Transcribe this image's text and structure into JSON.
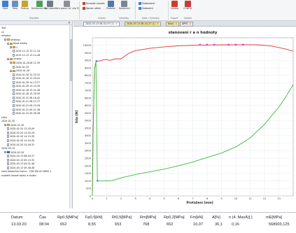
{
  "ribbon": {
    "buttons": [
      {
        "label": "Start",
        "color": "#3d7fd6"
      },
      {
        "label": "Stop",
        "color": "#6b8fbf"
      },
      {
        "label": "Postup",
        "color": "#c9a227"
      },
      {
        "label": "Kalibrovat\nsíly",
        "color": "#4b9e5b"
      },
      {
        "label": "Tare\nposun",
        "color": "#6c7a8c"
      },
      {
        "label": "Tare\nposun (ei. síla P)",
        "color": "#8b8f96"
      }
    ],
    "group_zkouska": "Zkouška",
    "small": [
      {
        "label": "Smazat vzorek",
        "color": "#d03a2c"
      },
      {
        "label": "Konec série",
        "color": "#d03a2c"
      }
    ],
    "group_vzorky": "Vzorky",
    "protokol_label": "Protokol",
    "nastaveni_label": "Nastavení",
    "vysledky_label": "Výsledky",
    "right_small": [
      {
        "label": "Zobrazení",
        "color": "#3d7fd6"
      },
      {
        "label": "Nulování",
        "color": "#3d7fd6"
      }
    ],
    "group_data": "Data / Výsledky",
    "export_label": "Výstup",
    "group_export": "Export",
    "config_label": "CONFIG",
    "group_config": "Zadání"
  },
  "tree": {
    "header": "",
    "items": [
      {
        "text": "Test",
        "kind": "text",
        "indent": 0
      },
      {
        "text": "ce",
        "kind": "text",
        "indent": 0
      },
      {
        "text": "ohledna",
        "kind": "text",
        "indent": 0
      },
      {
        "text": "Desktop",
        "kind": "folder",
        "indent": 1
      },
      {
        "text": "Nová složka",
        "kind": "folder",
        "indent": 2
      },
      {
        "text": "1",
        "kind": "folder",
        "indent": 3
      },
      {
        "text": "2019-12-13 13-11-54",
        "kind": "doc",
        "indent": 4
      },
      {
        "text": "2019-12-13 13-14-48",
        "kind": "doc",
        "indent": 4
      },
      {
        "text": "zvukov",
        "kind": "folder",
        "indent": 2
      },
      {
        "text": "2020-01-2016 12-39",
        "kind": "folder",
        "indent": 3
      },
      {
        "text": "2020-01-29",
        "kind": "doc",
        "indent": 4
      },
      {
        "text": "2020-01-28",
        "kind": "folder",
        "indent": 3
      },
      {
        "text": "2020-01-28 13-32-32",
        "kind": "doc",
        "indent": 4
      },
      {
        "text": "2020-01-28 13-59-42",
        "kind": "doc",
        "indent": 4
      },
      {
        "text": "2020-01-28 14-13-27",
        "kind": "doc",
        "indent": 4
      },
      {
        "text": "2020-01-28 14-24-30",
        "kind": "doc",
        "indent": 4
      },
      {
        "text": "2020-01-28 15-21-38",
        "kind": "doc",
        "indent": 4
      },
      {
        "text": "2020-01-28 15-39-59",
        "kind": "doc",
        "indent": 4
      },
      {
        "text": "2020-01-31 08-16-42",
        "kind": "doc",
        "indent": 4
      },
      {
        "text": "2020-01-31 08-22-37",
        "kind": "doc",
        "indent": 4
      },
      {
        "text": "2020-01-31 09-23-28",
        "kind": "doc",
        "indent": 4
      },
      {
        "text": "2020-01-31 09-51-36",
        "kind": "doc",
        "indent": 4
      },
      {
        "text": "2020-01-31 09-58-38",
        "kind": "doc",
        "indent": 4
      },
      {
        "text": "sítka",
        "kind": "text",
        "indent": 0
      },
      {
        "text": "2020-02-20",
        "kind": "text",
        "indent": 0
      },
      {
        "text": "2020-02-20",
        "kind": "folder",
        "indent": 1
      },
      {
        "text": "2020-02-20 13-45-09",
        "kind": "doc",
        "indent": 2
      },
      {
        "text": "2020-02-20 14-05-29",
        "kind": "doc",
        "indent": 2
      },
      {
        "text": "2020-02-20 14-15-39",
        "kind": "doc",
        "indent": 2
      },
      {
        "text": "2020-02-20 14-44-30",
        "kind": "doc",
        "indent": 2
      },
      {
        "text": "2020-02-20 14-49-32",
        "kind": "doc",
        "indent": 2
      },
      {
        "text": "2020-03-13",
        "kind": "text",
        "indent": 0
      },
      {
        "text": "2020-02-20",
        "kind": "folder-blue",
        "indent": 1
      },
      {
        "text": "2020-03-13 08-04-37",
        "kind": "doc",
        "indent": 2
      },
      {
        "text": "2020-03-13 09-15-35",
        "kind": "doc",
        "indent": 2
      },
      {
        "text": "2020-03-13 09-41-46",
        "kind": "doc",
        "indent": 2
      },
      {
        "text": "2020-03-13 09-46-48",
        "kind": "doc",
        "indent": 2
      },
      {
        "text": "hood dokončila kromu - ČSN EN ISO 6892-1",
        "kind": "text",
        "indent": 0
      },
      {
        "text": "ovatelé tahové kolaci a skutku",
        "kind": "text",
        "indent": 0
      }
    ]
  },
  "tabs": [
    {
      "label": "2020-03-13 08-04-37 (1)",
      "active": true
    },
    {
      "label": "2020-03-13 08-04-37 (1)",
      "active": false
    },
    {
      "label": "Nový",
      "active": false
    },
    {
      "label": "APPS",
      "active": false
    }
  ],
  "chart_data": {
    "type": "line",
    "title": "stanovení r a n hodnoty",
    "xlabel": "Protažení [mm]",
    "ylabel": "Síla [N]",
    "xlim": [
      0,
      14
    ],
    "ylim": [
      0,
      10500
    ],
    "x_ticks": [
      "0",
      "1",
      "2",
      "3",
      "4",
      "5",
      "6",
      "7",
      "8",
      "9",
      "10",
      "11",
      "12",
      "13"
    ],
    "y_ticks": [
      "0",
      "500",
      "1000",
      "1500",
      "2000",
      "2500",
      "3000",
      "3500",
      "4000",
      "4500",
      "5000",
      "5500",
      "6000",
      "6500",
      "7000",
      "7500",
      "8000",
      "8500",
      "9000",
      "9500",
      "10000"
    ],
    "grid": true,
    "series": [
      {
        "color": "#e0343a",
        "x": [
          0,
          0.05,
          0.15,
          0.25,
          0.3,
          0.4,
          0.5,
          0.8,
          1.0,
          1.2,
          1.6,
          2.0,
          2.5,
          3.0,
          4.0,
          5.0,
          6.0,
          7.0,
          8.0,
          9.0,
          10.0,
          10.5,
          11.0,
          11.5,
          12.0,
          12.5,
          13.0,
          13.5,
          14.0
        ],
        "y": [
          0,
          4000,
          8500,
          8900,
          8950,
          8950,
          8950,
          9050,
          9050,
          9000,
          9100,
          9100,
          9450,
          9650,
          9800,
          9900,
          9970,
          10000,
          10020,
          10030,
          10040,
          10040,
          10040,
          10030,
          10000,
          9950,
          9850,
          9750,
          9600
        ]
      },
      {
        "color": "#3fb83f",
        "x": [
          0,
          0.05,
          0.15,
          0.25,
          0.35,
          0.5,
          0.8,
          1.0,
          1.2,
          1.5,
          2.0,
          3.0,
          4.0,
          5.0,
          6.0,
          7.0,
          8.0,
          9.0,
          10.0,
          11.0,
          12.0,
          13.0,
          13.5,
          14.0
        ],
        "y": [
          0,
          4000,
          8450,
          8900,
          1000,
          1000,
          1000,
          1000,
          1000,
          1050,
          1200,
          1420,
          1600,
          1780,
          2000,
          2250,
          2550,
          2850,
          3250,
          3850,
          4750,
          5900,
          6600,
          7400
        ]
      }
    ],
    "magenta_marks_x": [
      7.5,
      8.0,
      8.5,
      9.5,
      10.0,
      10.5
    ],
    "magenta_y": 10040,
    "marker_color": "#d93ad9"
  },
  "result_table": {
    "headers": [
      "Datum",
      "Čas",
      "Rp0,5[MPa]",
      "Fp0,5[kN]",
      "Rt0,5[MPa]",
      "Rm[MPa]",
      "Rp0,2[MPa]",
      "Fm[kN]",
      "A[%]",
      "n (4..MaxA)[ ]",
      "mE[MPa]"
    ],
    "row": [
      "13.03.20",
      "08:04",
      "652",
      "8,55",
      "653",
      "768",
      "652",
      "10,07",
      "36,1",
      "0,16",
      "568903,125"
    ]
  }
}
